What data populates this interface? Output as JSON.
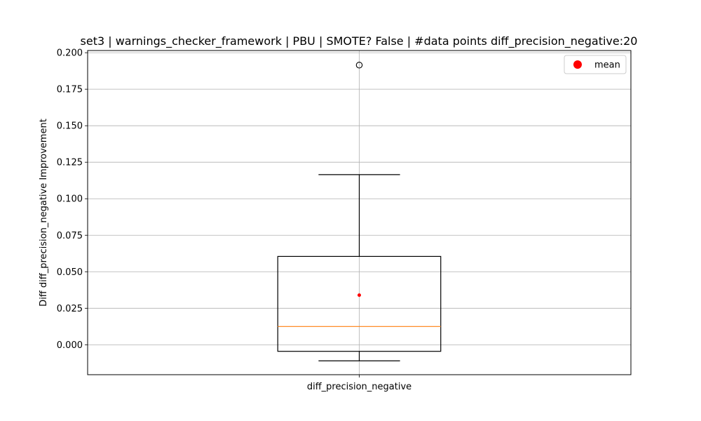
{
  "chart_data": {
    "type": "box",
    "title": "set3 | warnings_checker_framework | PBU | SMOTE? False | #data points diff_precision_negative:20",
    "xlabel": "",
    "ylabel": "Diff diff_precision_negative Improvement",
    "categories": [
      "diff_precision_negative"
    ],
    "ylim": [
      -0.0205,
      0.2015
    ],
    "yticks": [
      0.0,
      0.025,
      0.05,
      0.075,
      0.1,
      0.125,
      0.15,
      0.175,
      0.2
    ],
    "ytick_labels": [
      "0.000",
      "0.025",
      "0.050",
      "0.075",
      "0.100",
      "0.125",
      "0.150",
      "0.175",
      "0.200"
    ],
    "grid": true,
    "legend": {
      "position": "top-right",
      "entries": [
        {
          "label": "mean",
          "color": "#ff0000"
        }
      ]
    },
    "boxes": [
      {
        "name": "diff_precision_negative",
        "whisker_low": -0.011,
        "q1": -0.0045,
        "median": 0.0125,
        "q3": 0.0605,
        "whisker_high": 0.1165,
        "mean": 0.034,
        "outliers": [
          0.1915
        ]
      }
    ],
    "colors": {
      "box": "#000000",
      "median": "#ff7f0e",
      "mean": "#ff0000",
      "grid": "#b0b0b0"
    }
  }
}
